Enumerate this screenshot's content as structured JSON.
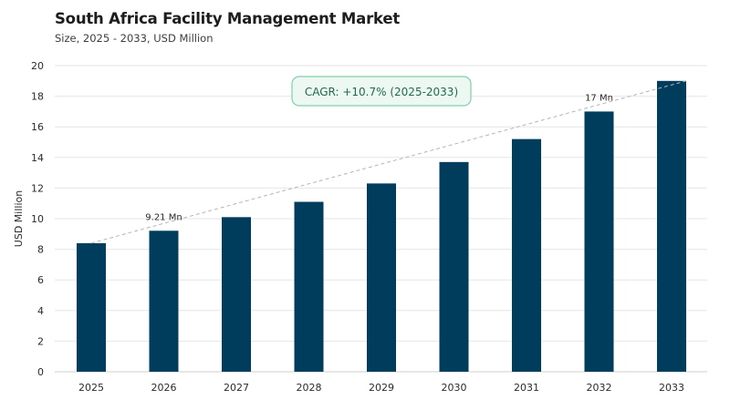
{
  "header": {
    "title": "South Africa Facility Management Market",
    "subtitle": "Size, 2025 - 2033, USD Million"
  },
  "annotation": {
    "cagr": "CAGR: +10.7% (2025-2033)"
  },
  "colors": {
    "bar": "#003d5c",
    "grid": "#e6e6e6",
    "trend": "#b5b5b5",
    "cagr_border": "#7fcfae",
    "cagr_fill": "#eef8f3",
    "cagr_text": "#1f6b4f"
  },
  "chart_data": {
    "type": "bar",
    "categories": [
      "2025",
      "2026",
      "2027",
      "2028",
      "2029",
      "2030",
      "2031",
      "2032",
      "2033"
    ],
    "values": [
      8.4,
      9.21,
      10.1,
      11.1,
      12.3,
      13.7,
      15.2,
      17,
      19
    ],
    "ylabel": "USD Million",
    "xlabel": "",
    "ylim": [
      0,
      20
    ],
    "yticks": [
      0,
      2,
      4,
      6,
      8,
      10,
      12,
      14,
      16,
      18,
      20
    ],
    "data_labels": [
      {
        "category": "2026",
        "text": "9.21 Mn"
      },
      {
        "category": "2032",
        "text": "17 Mn"
      }
    ],
    "trend_line": {
      "from": "2025",
      "to": "2033",
      "style": "dashed"
    },
    "grid": true
  }
}
